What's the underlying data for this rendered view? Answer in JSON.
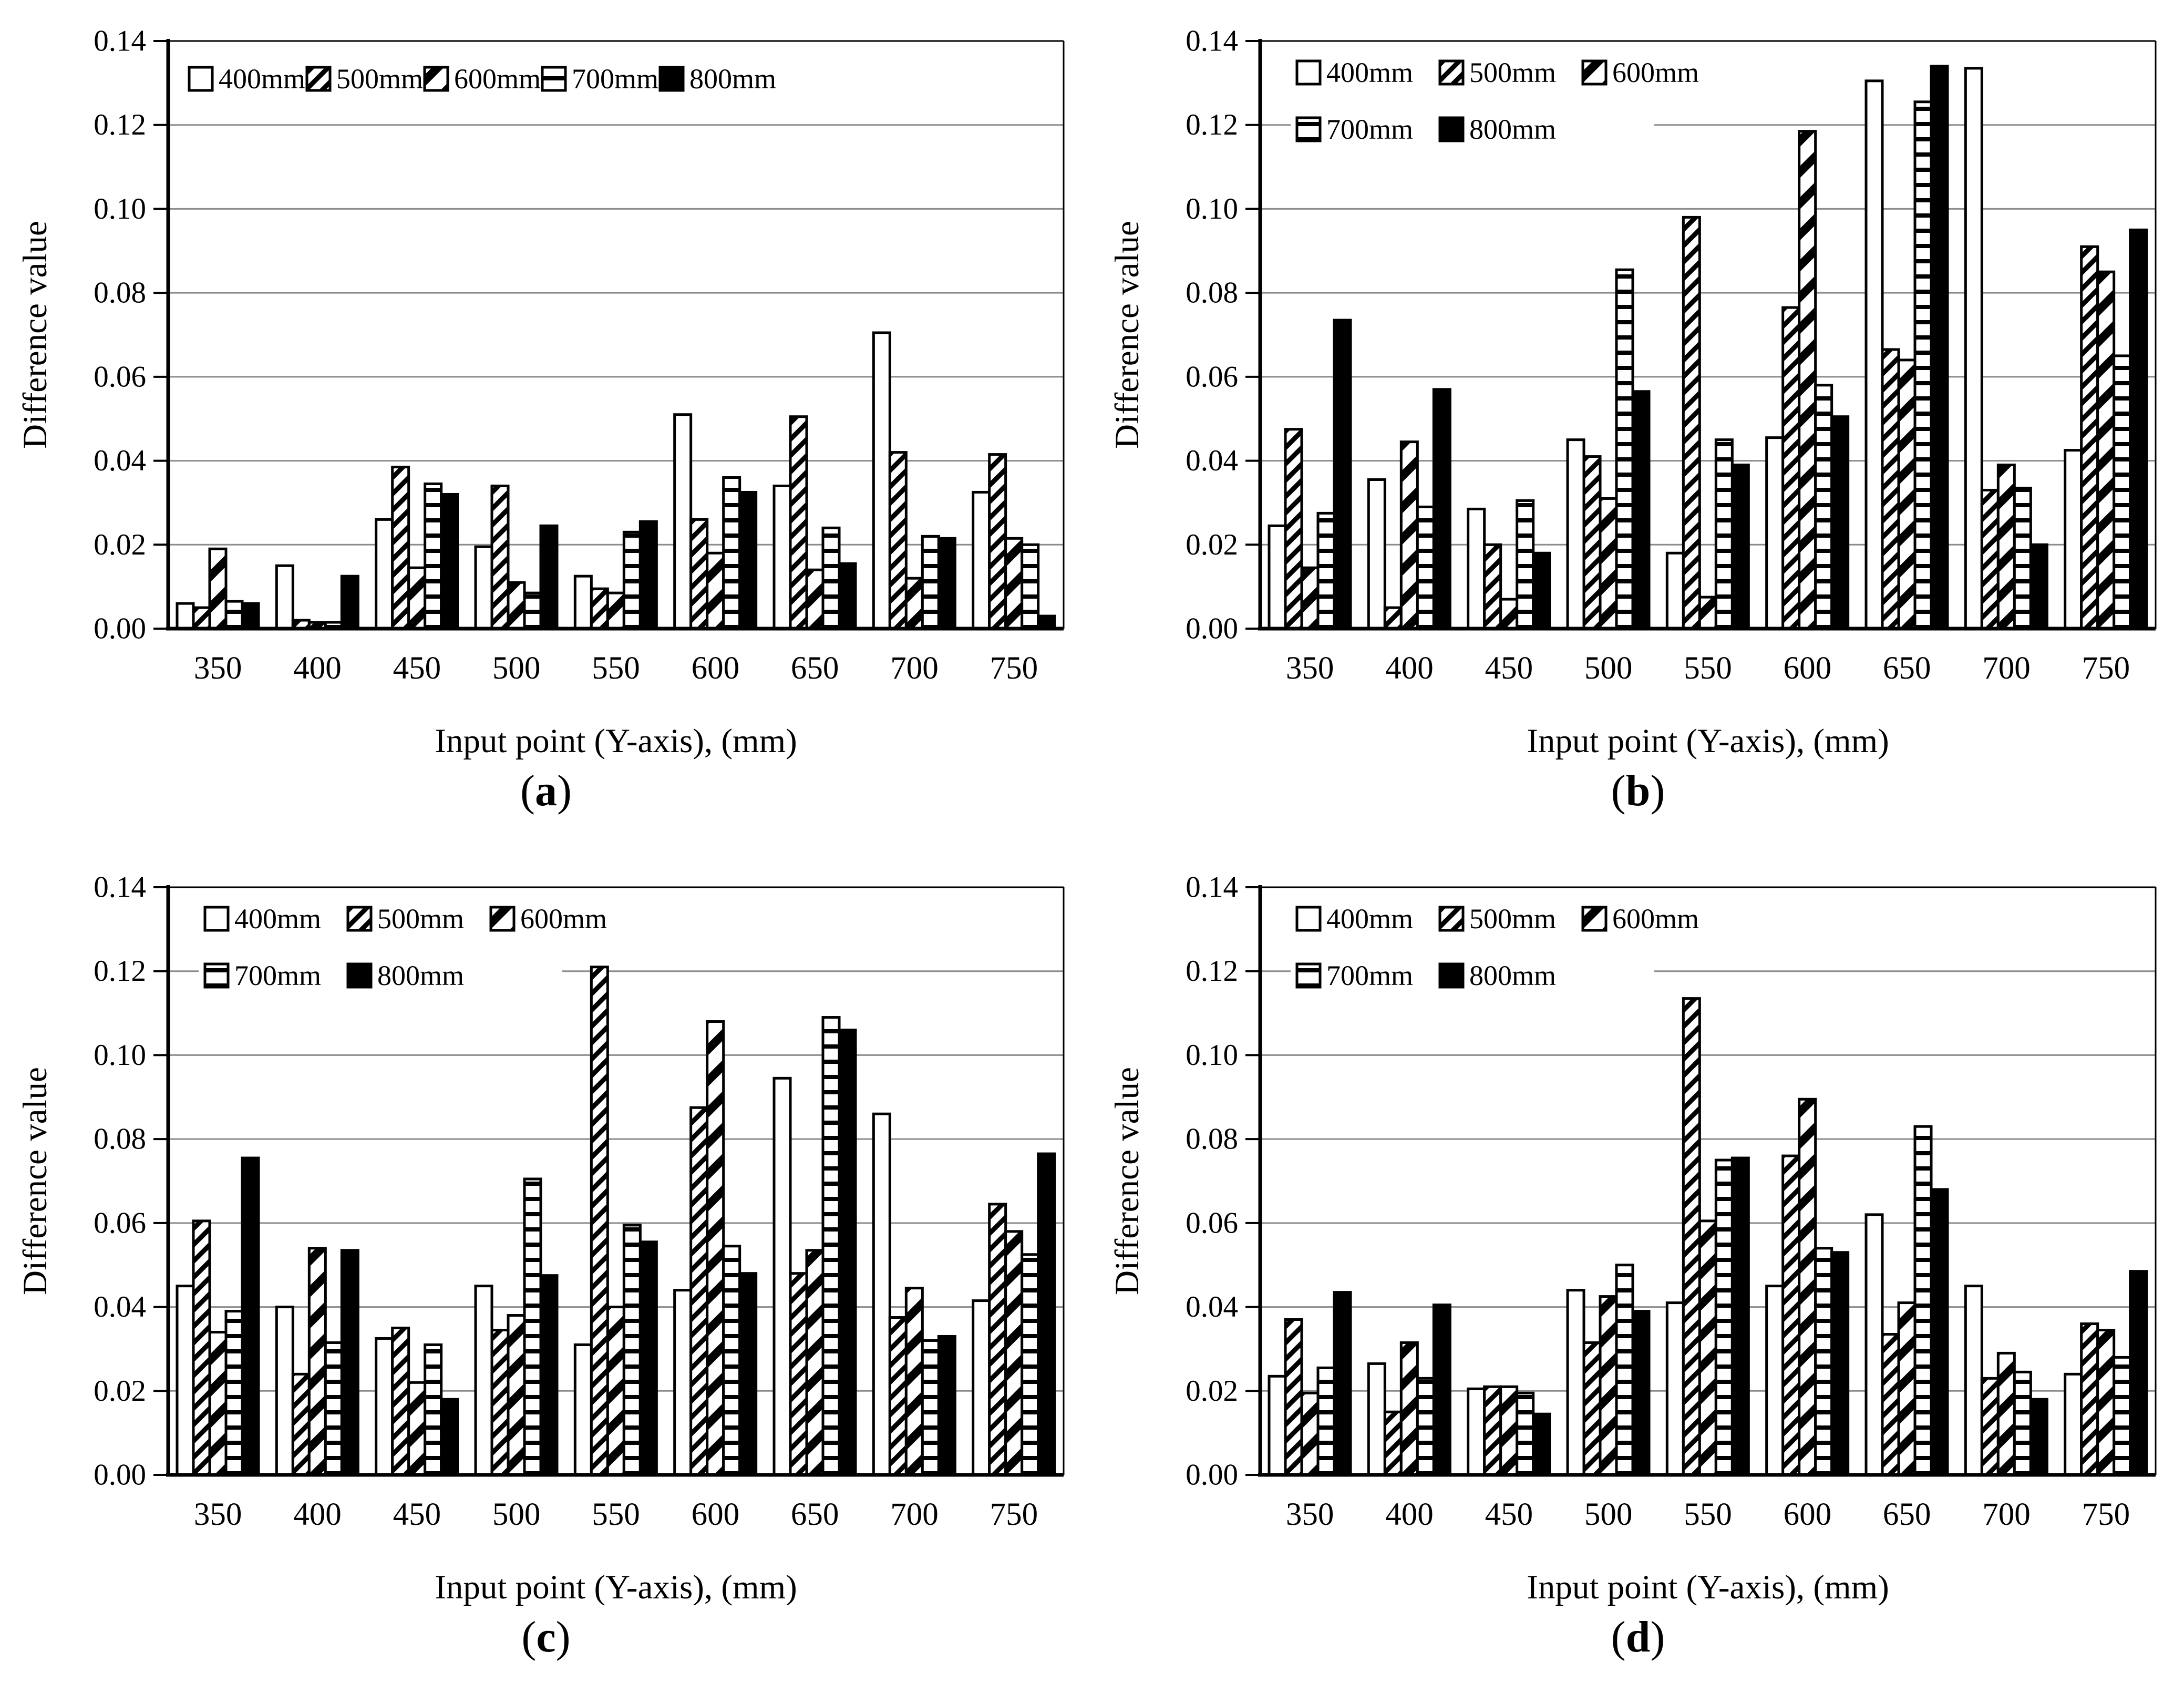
{
  "figure": {
    "y_ticks": [
      "0.00",
      "0.02",
      "0.04",
      "0.06",
      "0.08",
      "0.10",
      "0.12",
      "0.14"
    ],
    "colors": {
      "background": "#ffffff",
      "bar_fill_open": "#ffffff",
      "bar_fill_solid": "#000000",
      "bar_outline": "#000000",
      "gridline": "#8c8c8c",
      "axis": "#000000"
    }
  },
  "chart_data": [
    {
      "id": "a",
      "type": "bar",
      "caption_open": "(",
      "caption_letter": "a",
      "caption_close": ")",
      "xlabel": "Input point (Y-axis), (mm)",
      "ylabel": "Difference value",
      "ylim": [
        0,
        0.14
      ],
      "grid": "horizontal",
      "legend_position": "top-left-inside",
      "legend_rows": [
        [
          0,
          1,
          2,
          3,
          4
        ]
      ],
      "categories": [
        350,
        400,
        450,
        500,
        550,
        600,
        650,
        700,
        750
      ],
      "series": [
        {
          "name": "400mm",
          "pattern": "open",
          "values": [
            0.006,
            0.015,
            0.026,
            0.0195,
            0.0125,
            0.051,
            0.034,
            0.0705,
            0.0325
          ]
        },
        {
          "name": "500mm",
          "pattern": "hatch-dense",
          "values": [
            0.005,
            0.002,
            0.0385,
            0.034,
            0.0095,
            0.026,
            0.0505,
            0.042,
            0.0415
          ]
        },
        {
          "name": "600mm",
          "pattern": "hatch-wide",
          "values": [
            0.019,
            0.0015,
            0.0145,
            0.011,
            0.0085,
            0.018,
            0.014,
            0.012,
            0.0215
          ]
        },
        {
          "name": "700mm",
          "pattern": "hlines",
          "values": [
            0.0065,
            0.0015,
            0.0345,
            0.0085,
            0.023,
            0.036,
            0.024,
            0.022,
            0.02
          ]
        },
        {
          "name": "800mm",
          "pattern": "solid",
          "values": [
            0.006,
            0.0125,
            0.032,
            0.0245,
            0.0255,
            0.0325,
            0.0155,
            0.0215,
            0.003
          ]
        }
      ]
    },
    {
      "id": "b",
      "type": "bar",
      "caption_open": "(",
      "caption_letter": "b",
      "caption_close": ")",
      "xlabel": "Input point (Y-axis), (mm)",
      "ylabel": "Difference value",
      "ylim": [
        0,
        0.14
      ],
      "grid": "horizontal",
      "legend_position": "top-left-inside",
      "legend_rows": [
        [
          0,
          1,
          2
        ],
        [
          3,
          4
        ]
      ],
      "categories": [
        350,
        400,
        450,
        500,
        550,
        600,
        650,
        700,
        750
      ],
      "series": [
        {
          "name": "400mm",
          "pattern": "open",
          "values": [
            0.0245,
            0.0355,
            0.0285,
            0.045,
            0.018,
            0.0455,
            0.1305,
            0.1335,
            0.0425
          ]
        },
        {
          "name": "500mm",
          "pattern": "hatch-dense",
          "values": [
            0.0475,
            0.005,
            0.02,
            0.041,
            0.098,
            0.0765,
            0.0665,
            0.033,
            0.091
          ]
        },
        {
          "name": "600mm",
          "pattern": "hatch-wide",
          "values": [
            0.0145,
            0.0445,
            0.007,
            0.031,
            0.0075,
            0.1185,
            0.064,
            0.039,
            0.085
          ]
        },
        {
          "name": "700mm",
          "pattern": "hlines",
          "values": [
            0.0275,
            0.029,
            0.0305,
            0.0855,
            0.045,
            0.058,
            0.1255,
            0.0335,
            0.065
          ]
        },
        {
          "name": "800mm",
          "pattern": "solid",
          "values": [
            0.0735,
            0.057,
            0.018,
            0.0565,
            0.039,
            0.0505,
            0.134,
            0.02,
            0.095
          ]
        }
      ]
    },
    {
      "id": "c",
      "type": "bar",
      "caption_open": "(",
      "caption_letter": "c",
      "caption_close": ")",
      "xlabel": "Input point (Y-axis), (mm)",
      "ylabel": "Difference value",
      "ylim": [
        0,
        0.14
      ],
      "grid": "horizontal",
      "legend_position": "top-left-inside",
      "legend_rows": [
        [
          0,
          1,
          2
        ],
        [
          3,
          4
        ]
      ],
      "categories": [
        350,
        400,
        450,
        500,
        550,
        600,
        650,
        700,
        750
      ],
      "series": [
        {
          "name": "400mm",
          "pattern": "open",
          "values": [
            0.045,
            0.04,
            0.0325,
            0.045,
            0.031,
            0.044,
            0.0945,
            0.086,
            0.0415
          ]
        },
        {
          "name": "500mm",
          "pattern": "hatch-dense",
          "values": [
            0.0605,
            0.024,
            0.035,
            0.0345,
            0.121,
            0.0875,
            0.048,
            0.0375,
            0.0645
          ]
        },
        {
          "name": "600mm",
          "pattern": "hatch-wide",
          "values": [
            0.034,
            0.054,
            0.022,
            0.038,
            0.04,
            0.108,
            0.0535,
            0.0445,
            0.058
          ]
        },
        {
          "name": "700mm",
          "pattern": "hlines",
          "values": [
            0.039,
            0.0315,
            0.031,
            0.0705,
            0.0595,
            0.0545,
            0.109,
            0.032,
            0.0525
          ]
        },
        {
          "name": "800mm",
          "pattern": "solid",
          "values": [
            0.0755,
            0.0535,
            0.018,
            0.0475,
            0.0555,
            0.048,
            0.106,
            0.033,
            0.0765
          ]
        }
      ]
    },
    {
      "id": "d",
      "type": "bar",
      "caption_open": "(",
      "caption_letter": "d",
      "caption_close": ")",
      "xlabel": "Input point (Y-axis), (mm)",
      "ylabel": "Difference value",
      "ylim": [
        0,
        0.14
      ],
      "grid": "horizontal",
      "legend_position": "top-left-inside",
      "legend_rows": [
        [
          0,
          1,
          2
        ],
        [
          3,
          4
        ]
      ],
      "categories": [
        350,
        400,
        450,
        500,
        550,
        600,
        650,
        700,
        750
      ],
      "series": [
        {
          "name": "400mm",
          "pattern": "open",
          "values": [
            0.0235,
            0.0265,
            0.0205,
            0.044,
            0.041,
            0.045,
            0.062,
            0.045,
            0.024
          ]
        },
        {
          "name": "500mm",
          "pattern": "hatch-dense",
          "values": [
            0.037,
            0.015,
            0.021,
            0.0315,
            0.1135,
            0.076,
            0.0335,
            0.023,
            0.036
          ]
        },
        {
          "name": "600mm",
          "pattern": "hatch-wide",
          "values": [
            0.0195,
            0.0315,
            0.021,
            0.0425,
            0.0605,
            0.0895,
            0.041,
            0.029,
            0.0345
          ]
        },
        {
          "name": "700mm",
          "pattern": "hlines",
          "values": [
            0.0255,
            0.023,
            0.0195,
            0.05,
            0.075,
            0.054,
            0.083,
            0.0245,
            0.028
          ]
        },
        {
          "name": "800mm",
          "pattern": "solid",
          "values": [
            0.0435,
            0.0405,
            0.0145,
            0.039,
            0.0755,
            0.053,
            0.068,
            0.018,
            0.0485
          ]
        }
      ]
    }
  ]
}
